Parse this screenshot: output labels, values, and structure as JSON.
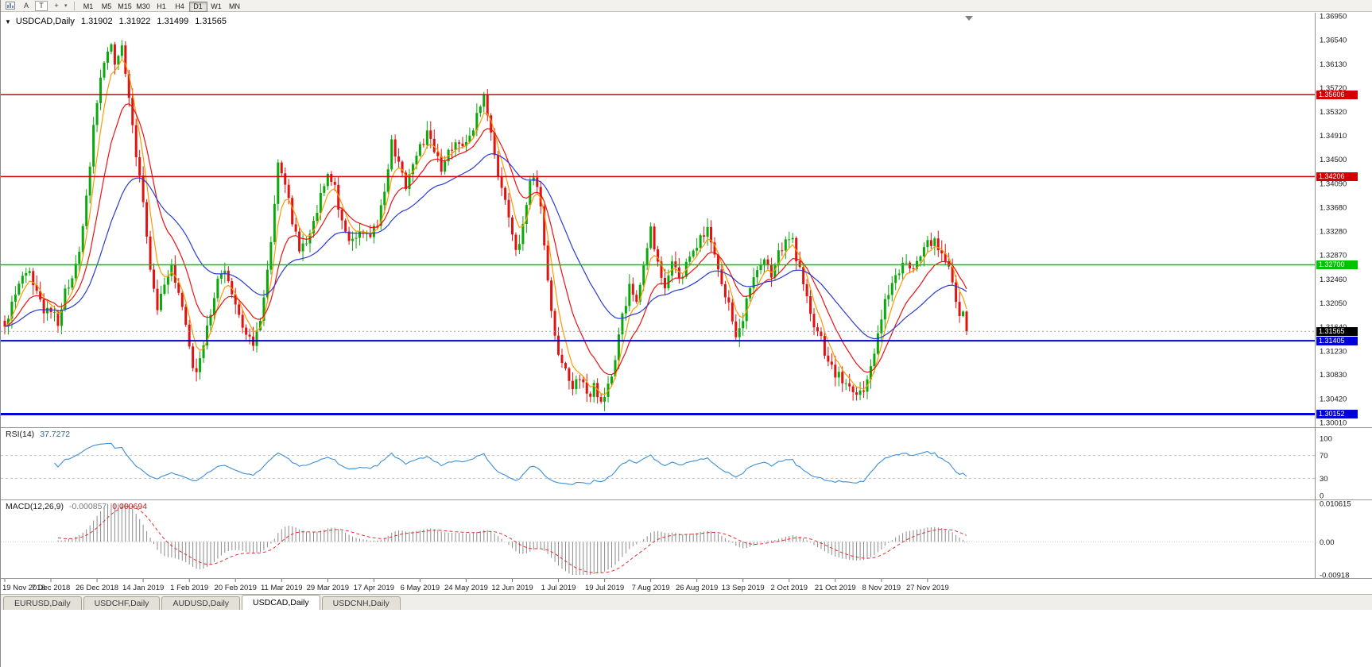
{
  "toolbar": {
    "tool_buttons": [
      "A",
      "T"
    ],
    "timeframes": [
      "M1",
      "M5",
      "M15",
      "M30",
      "H1",
      "H4",
      "D1",
      "W1",
      "MN"
    ],
    "active_timeframe": "D1"
  },
  "icons": {
    "oneclick": "▼",
    "caret": "▾",
    "crosshair": "+"
  },
  "chart_header": {
    "symbol_period": "USDCAD,Daily",
    "open": "1.31902",
    "high": "1.31922",
    "low": "1.31499",
    "close": "1.31565"
  },
  "panels": {
    "rsi": {
      "title": "RSI(14)",
      "value": "37.7272",
      "axis_labels": [
        "100",
        "70",
        "30",
        "0"
      ],
      "dashed_levels": [
        70,
        30
      ]
    },
    "macd": {
      "title": "MACD(12,26,9)",
      "value_main": "-0.000857",
      "value_signal": "0.000694",
      "axis_labels": [
        "0.010615",
        "0.00",
        "-0.00918"
      ]
    }
  },
  "tabs": {
    "items": [
      "EURUSD,Daily",
      "USDCHF,Daily",
      "AUDUSD,Daily",
      "USDCAD,Daily",
      "USDCNH,Daily"
    ],
    "active": "USDCAD,Daily"
  },
  "colors": {
    "bull": "#0aa80a",
    "bear": "#e01212",
    "ma_fast": "#ff9900",
    "ma_mid": "#ee1111",
    "ma_slow": "#2a3bd0",
    "rsi": "#3d8fd6",
    "macd_hist": "#8a8a8a",
    "macd_signal": "#e03030",
    "current_price_badge": "#000000"
  },
  "chart_data": {
    "type": "candlestick",
    "symbol": "USDCAD",
    "timeframe": "Daily",
    "bars": 272,
    "bars_per_label": 13,
    "current_price": 1.31565,
    "ohlc_last": {
      "open": 1.31902,
      "high": 1.31922,
      "low": 1.31499,
      "close": 1.31565
    },
    "y_axis_labels": [
      "1.36950",
      "1.36540",
      "1.36130",
      "1.35720",
      "1.35320",
      "1.34910",
      "1.34500",
      "1.34090",
      "1.33680",
      "1.33280",
      "1.32870",
      "1.32460",
      "1.32050",
      "1.31640",
      "1.31230",
      "1.30830",
      "1.30420",
      "1.30010"
    ],
    "x_axis_dates": [
      "19 Nov 2018",
      "7 Dec 2018",
      "26 Dec 2018",
      "14 Jan 2019",
      "1 Feb 2019",
      "20 Feb 2019",
      "11 Mar 2019",
      "29 Mar 2019",
      "17 Apr 2019",
      "6 May 2019",
      "24 May 2019",
      "12 Jun 2019",
      "1 Jul 2019",
      "19 Jul 2019",
      "7 Aug 2019",
      "26 Aug 2019",
      "13 Sep 2019",
      "2 Oct 2019",
      "21 Oct 2019",
      "8 Nov 2019",
      "27 Nov 2019"
    ],
    "horizontal_levels": [
      {
        "price": 1.35606,
        "label": "1.35606",
        "color": "#d40000",
        "width": 1.5
      },
      {
        "price": 1.34206,
        "label": "1.34206",
        "color": "#d40000",
        "width": 1.5
      },
      {
        "price": 1.327,
        "label": "1.32700",
        "color": "#00c400",
        "width": 1.5
      },
      {
        "price": 1.31405,
        "label": "1.31405",
        "color": "#0000d8",
        "width": 2
      },
      {
        "price": 1.30152,
        "label": "1.30152",
        "color": "#0000d8",
        "width": 3
      }
    ],
    "moving_averages": [
      {
        "name": "fast",
        "period": 5,
        "color": "#ff9900"
      },
      {
        "name": "mid",
        "period": 13,
        "color": "#ee1111"
      },
      {
        "name": "slow",
        "period": 34,
        "color": "#2a3bd0"
      }
    ],
    "indicators": [
      {
        "name": "RSI",
        "params": "14",
        "current": 37.7272,
        "levels": [
          70,
          30
        ],
        "range": [
          0,
          100
        ]
      },
      {
        "name": "MACD",
        "params": "12,26,9",
        "main": -0.000857,
        "signal": 0.000694,
        "range": [
          -0.00918,
          0.010615
        ]
      }
    ],
    "price_path_anchors": [
      [
        0,
        1.3165
      ],
      [
        3,
        1.3215
      ],
      [
        6,
        1.3262
      ],
      [
        9,
        1.3228
      ],
      [
        11,
        1.318
      ],
      [
        13,
        1.3196
      ],
      [
        15,
        1.3174
      ],
      [
        17,
        1.3222
      ],
      [
        19,
        1.3245
      ],
      [
        21,
        1.3295
      ],
      [
        23,
        1.338
      ],
      [
        25,
        1.3505
      ],
      [
        27,
        1.359
      ],
      [
        29,
        1.3642
      ],
      [
        30,
        1.3655
      ],
      [
        31,
        1.3615
      ],
      [
        33,
        1.3638
      ],
      [
        35,
        1.3555
      ],
      [
        37,
        1.3462
      ],
      [
        39,
        1.3378
      ],
      [
        41,
        1.3268
      ],
      [
        43,
        1.3196
      ],
      [
        45,
        1.3242
      ],
      [
        47,
        1.3262
      ],
      [
        49,
        1.3228
      ],
      [
        51,
        1.3175
      ],
      [
        52,
        1.3122
      ],
      [
        54,
        1.3082
      ],
      [
        56,
        1.3132
      ],
      [
        58,
        1.3192
      ],
      [
        60,
        1.3246
      ],
      [
        62,
        1.3258
      ],
      [
        64,
        1.3222
      ],
      [
        66,
        1.3188
      ],
      [
        68,
        1.315
      ],
      [
        70,
        1.3134
      ],
      [
        72,
        1.3182
      ],
      [
        74,
        1.3262
      ],
      [
        76,
        1.3365
      ],
      [
        77,
        1.3442
      ],
      [
        79,
        1.3412
      ],
      [
        81,
        1.3348
      ],
      [
        83,
        1.3298
      ],
      [
        85,
        1.3312
      ],
      [
        87,
        1.3342
      ],
      [
        89,
        1.3392
      ],
      [
        91,
        1.3422
      ],
      [
        93,
        1.3398
      ],
      [
        95,
        1.3338
      ],
      [
        97,
        1.3305
      ],
      [
        99,
        1.3322
      ],
      [
        101,
        1.3332
      ],
      [
        103,
        1.3318
      ],
      [
        105,
        1.3345
      ],
      [
        107,
        1.3392
      ],
      [
        109,
        1.3478
      ],
      [
        111,
        1.3438
      ],
      [
        113,
        1.3402
      ],
      [
        115,
        1.3448
      ],
      [
        117,
        1.3468
      ],
      [
        119,
        1.3492
      ],
      [
        121,
        1.3462
      ],
      [
        123,
        1.3432
      ],
      [
        125,
        1.3458
      ],
      [
        127,
        1.3478
      ],
      [
        129,
        1.3468
      ],
      [
        131,
        1.3492
      ],
      [
        133,
        1.3522
      ],
      [
        135,
        1.3558
      ],
      [
        136,
        1.3528
      ],
      [
        138,
        1.3452
      ],
      [
        140,
        1.3402
      ],
      [
        142,
        1.3342
      ],
      [
        144,
        1.3292
      ],
      [
        146,
        1.3332
      ],
      [
        148,
        1.3412
      ],
      [
        149,
        1.3426
      ],
      [
        151,
        1.3378
      ],
      [
        153,
        1.3242
      ],
      [
        155,
        1.3152
      ],
      [
        156,
        1.3112
      ],
      [
        158,
        1.3092
      ],
      [
        160,
        1.3062
      ],
      [
        162,
        1.3082
      ],
      [
        164,
        1.3042
      ],
      [
        166,
        1.3062
      ],
      [
        168,
        1.3032
      ],
      [
        170,
        1.3062
      ],
      [
        172,
        1.3112
      ],
      [
        174,
        1.3182
      ],
      [
        176,
        1.3232
      ],
      [
        178,
        1.3216
      ],
      [
        180,
        1.3272
      ],
      [
        182,
        1.3332
      ],
      [
        184,
        1.3272
      ],
      [
        186,
        1.3232
      ],
      [
        188,
        1.3272
      ],
      [
        190,
        1.3242
      ],
      [
        192,
        1.3272
      ],
      [
        194,
        1.3292
      ],
      [
        196,
        1.3312
      ],
      [
        198,
        1.3332
      ],
      [
        200,
        1.3292
      ],
      [
        202,
        1.3242
      ],
      [
        204,
        1.3202
      ],
      [
        206,
        1.3152
      ],
      [
        208,
        1.3182
      ],
      [
        210,
        1.3232
      ],
      [
        212,
        1.3262
      ],
      [
        214,
        1.3282
      ],
      [
        216,
        1.3256
      ],
      [
        218,
        1.3292
      ],
      [
        220,
        1.3312
      ],
      [
        222,
        1.3308
      ],
      [
        224,
        1.3262
      ],
      [
        226,
        1.3216
      ],
      [
        228,
        1.3172
      ],
      [
        230,
        1.3142
      ],
      [
        232,
        1.3102
      ],
      [
        234,
        1.3086
      ],
      [
        236,
        1.3072
      ],
      [
        238,
        1.3056
      ],
      [
        240,
        1.3046
      ],
      [
        242,
        1.3062
      ],
      [
        244,
        1.3096
      ],
      [
        246,
        1.3152
      ],
      [
        248,
        1.3206
      ],
      [
        250,
        1.3236
      ],
      [
        252,
        1.3252
      ],
      [
        254,
        1.3282
      ],
      [
        256,
        1.3262
      ],
      [
        258,
        1.3292
      ],
      [
        260,
        1.3306
      ],
      [
        262,
        1.3312
      ],
      [
        264,
        1.3292
      ],
      [
        266,
        1.3272
      ],
      [
        267,
        1.3242
      ],
      [
        268,
        1.3206
      ],
      [
        269,
        1.3182
      ],
      [
        270,
        1.31902
      ],
      [
        271,
        1.31565
      ]
    ]
  }
}
